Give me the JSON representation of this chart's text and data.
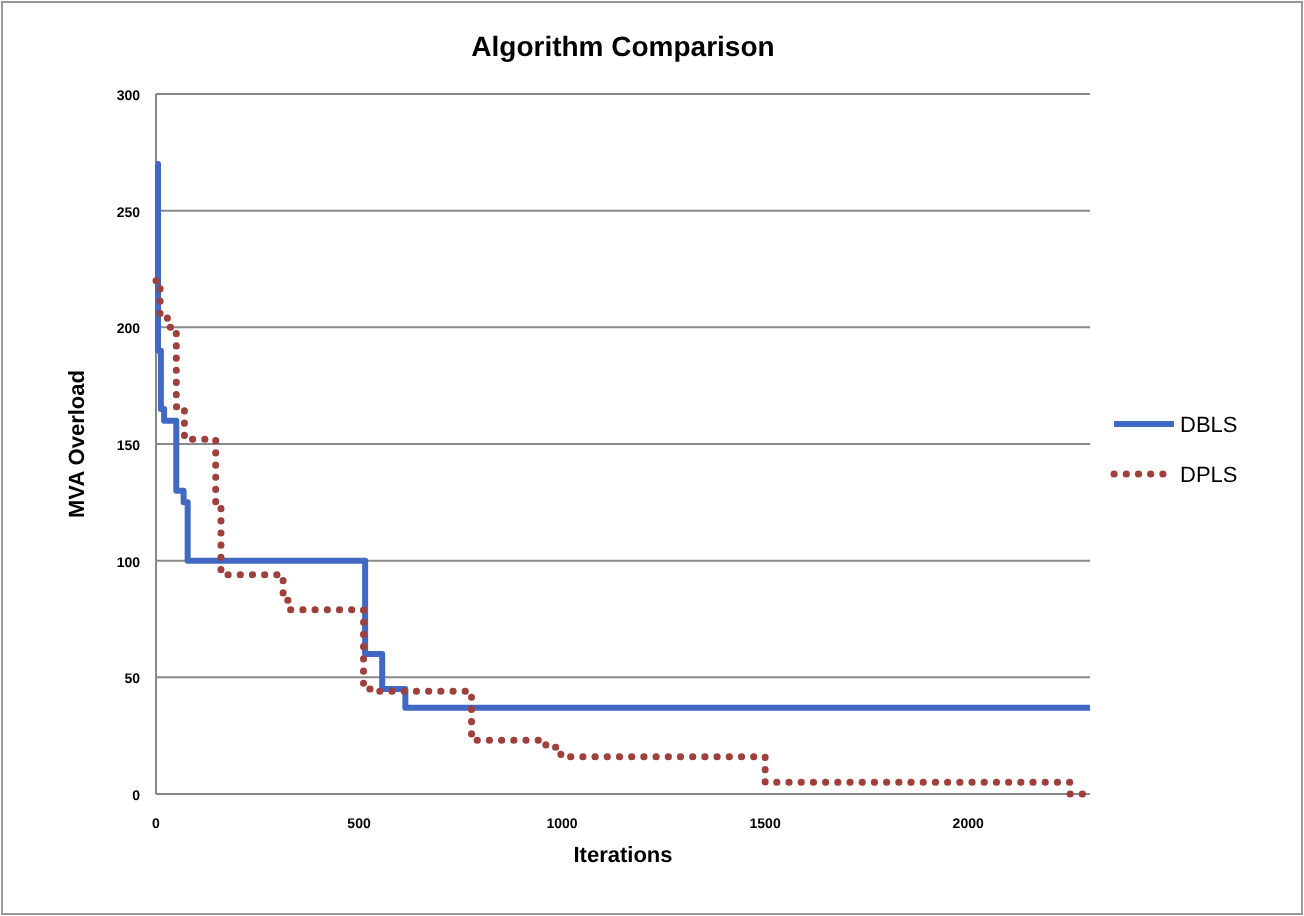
{
  "chart_data": {
    "type": "step",
    "title": "Algorithm Comparison",
    "xlabel": "Iterations",
    "ylabel": "MVA Overload",
    "xlim": [
      0,
      2300
    ],
    "xticks": [
      0,
      500,
      1000,
      1500,
      2000
    ],
    "ylim": [
      0,
      300
    ],
    "yticks": [
      0,
      50,
      100,
      150,
      200,
      250,
      300
    ],
    "grid": "y",
    "legend": "right",
    "series": [
      {
        "name": "DBLS",
        "color": "#4169c4",
        "line_style": "solid",
        "x": [
          0,
          5,
          12,
          20,
          50,
          68,
          78,
          515,
          530,
          557,
          614,
          2300
        ],
        "values": [
          270,
          190,
          165,
          160,
          130,
          125,
          100,
          60,
          60,
          45,
          37,
          37
        ]
      },
      {
        "name": "DPLS",
        "color": "#a0403c",
        "line_style": "dotted",
        "x": [
          0,
          10,
          28,
          50,
          70,
          147,
          160,
          290,
          313,
          330,
          511,
          530,
          760,
          777,
          960,
          997,
          1480,
          1500,
          2250,
          2300
        ],
        "values": [
          220,
          205,
          200,
          166,
          152,
          124,
          94,
          94,
          83,
          79,
          45,
          44,
          44,
          23,
          20,
          16,
          16,
          5,
          0,
          0
        ]
      }
    ]
  }
}
